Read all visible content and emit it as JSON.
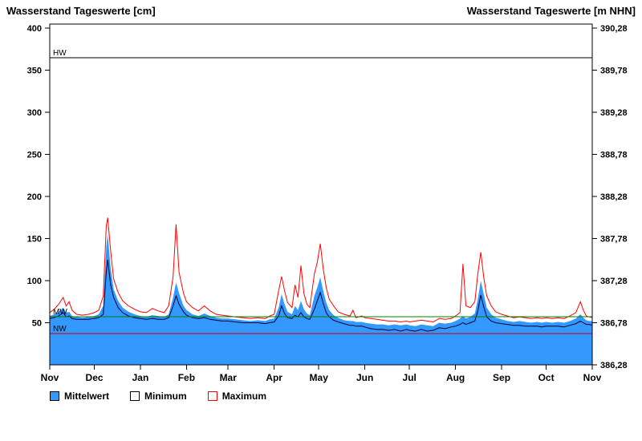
{
  "chart": {
    "title_left": "Wasserstand Tageswerte [cm]",
    "title_right": "Wasserstand Tageswerte [m NHN]"
  },
  "legend": [
    {
      "label": "Mittelwert"
    },
    {
      "label": "Minimum"
    },
    {
      "label": "Maximum"
    }
  ],
  "colors": {
    "mean_fill": "#3399FF",
    "min_line": "#000033",
    "max_line": "#FF0000",
    "mw_line": "#008000",
    "nw_line": "#CC0000",
    "hw_line": "#000000"
  },
  "chart_data": {
    "type": "area",
    "title": "Wasserstand Tageswerte",
    "unit_left": "cm",
    "unit_right": "m NHN",
    "x_unit": "day of water year, Nov 1 = 0",
    "x_range": [
      0,
      365
    ],
    "ylim_cm": [
      0,
      405
    ],
    "grid": false,
    "legend_position": "bottom",
    "x_ticks": {
      "days": [
        0,
        30,
        61,
        92,
        120,
        151,
        181,
        212,
        242,
        273,
        304,
        334,
        365
      ],
      "labels": [
        "Nov",
        "Dec",
        "Jan",
        "Feb",
        "Mar",
        "Apr",
        "May",
        "Jun",
        "Jul",
        "Aug",
        "Sep",
        "Oct",
        "Nov"
      ]
    },
    "yticks_left_cm": [
      50,
      100,
      150,
      200,
      250,
      300,
      350,
      400
    ],
    "yticks_right": {
      "values_cm": [
        0,
        50,
        100,
        150,
        200,
        250,
        300,
        350,
        400
      ],
      "labels": [
        "386,28",
        "386,78",
        "387,28",
        "387,78",
        "388,28",
        "388,78",
        "389,28",
        "389,78",
        "390,28"
      ]
    },
    "reference_lines": [
      {
        "name": "HW",
        "value_cm": 365
      },
      {
        "name": "MW",
        "value_cm": 57
      },
      {
        "name": "NW",
        "value_cm": 37
      }
    ],
    "point_format": [
      "day",
      "minimum_cm",
      "mittelwert_cm",
      "maximum_cm"
    ],
    "points": [
      [
        0,
        55,
        58,
        62
      ],
      [
        3,
        56,
        60,
        66
      ],
      [
        6,
        58,
        63,
        72
      ],
      [
        9,
        62,
        68,
        80
      ],
      [
        11,
        57,
        62,
        70
      ],
      [
        13,
        58,
        63,
        75
      ],
      [
        15,
        55,
        58,
        65
      ],
      [
        18,
        54,
        57,
        60
      ],
      [
        22,
        54,
        56,
        59
      ],
      [
        26,
        54,
        57,
        60
      ],
      [
        30,
        55,
        58,
        62
      ],
      [
        33,
        56,
        60,
        65
      ],
      [
        36,
        60,
        70,
        82
      ],
      [
        38,
        110,
        140,
        165
      ],
      [
        39,
        125,
        155,
        175
      ],
      [
        41,
        95,
        115,
        135
      ],
      [
        43,
        80,
        90,
        102
      ],
      [
        46,
        68,
        76,
        86
      ],
      [
        49,
        62,
        68,
        76
      ],
      [
        53,
        58,
        63,
        70
      ],
      [
        57,
        56,
        60,
        66
      ],
      [
        61,
        55,
        58,
        63
      ],
      [
        65,
        54,
        57,
        62
      ],
      [
        69,
        55,
        59,
        67
      ],
      [
        73,
        54,
        58,
        64
      ],
      [
        77,
        54,
        57,
        62
      ],
      [
        80,
        56,
        60,
        70
      ],
      [
        83,
        70,
        80,
        105
      ],
      [
        85,
        82,
        98,
        167
      ],
      [
        87,
        72,
        85,
        110
      ],
      [
        90,
        63,
        70,
        85
      ],
      [
        92,
        59,
        65,
        75
      ],
      [
        96,
        56,
        60,
        68
      ],
      [
        100,
        55,
        58,
        64
      ],
      [
        104,
        56,
        61,
        70
      ],
      [
        108,
        54,
        58,
        64
      ],
      [
        112,
        53,
        56,
        60
      ],
      [
        116,
        52,
        55,
        59
      ],
      [
        120,
        52,
        55,
        58
      ],
      [
        125,
        51,
        54,
        57
      ],
      [
        130,
        50,
        53,
        56
      ],
      [
        135,
        50,
        52,
        55
      ],
      [
        140,
        50,
        53,
        56
      ],
      [
        145,
        49,
        52,
        55
      ],
      [
        148,
        50,
        54,
        58
      ],
      [
        151,
        51,
        55,
        60
      ],
      [
        154,
        58,
        68,
        88
      ],
      [
        156,
        70,
        84,
        105
      ],
      [
        158,
        61,
        72,
        88
      ],
      [
        160,
        56,
        63,
        74
      ],
      [
        163,
        55,
        60,
        68
      ],
      [
        165,
        59,
        70,
        95
      ],
      [
        167,
        57,
        65,
        80
      ],
      [
        169,
        62,
        76,
        118
      ],
      [
        171,
        57,
        66,
        85
      ],
      [
        173,
        55,
        61,
        72
      ],
      [
        175,
        54,
        59,
        68
      ],
      [
        178,
        66,
        82,
        108
      ],
      [
        180,
        76,
        92,
        122
      ],
      [
        182,
        86,
        104,
        144
      ],
      [
        184,
        73,
        88,
        114
      ],
      [
        186,
        62,
        74,
        92
      ],
      [
        188,
        57,
        65,
        78
      ],
      [
        191,
        53,
        59,
        70
      ],
      [
        194,
        51,
        56,
        63
      ],
      [
        198,
        49,
        53,
        60
      ],
      [
        202,
        47,
        52,
        58
      ],
      [
        204,
        47,
        52,
        65
      ],
      [
        206,
        46,
        51,
        56
      ],
      [
        210,
        46,
        51,
        58
      ],
      [
        212,
        45,
        50,
        56
      ],
      [
        216,
        43,
        49,
        55
      ],
      [
        220,
        42,
        48,
        54
      ],
      [
        224,
        42,
        48,
        53
      ],
      [
        228,
        41,
        47,
        52
      ],
      [
        232,
        42,
        48,
        52
      ],
      [
        236,
        40,
        47,
        51
      ],
      [
        240,
        42,
        48,
        52
      ],
      [
        242,
        41,
        47,
        51
      ],
      [
        246,
        40,
        46,
        52
      ],
      [
        250,
        42,
        48,
        53
      ],
      [
        254,
        40,
        47,
        52
      ],
      [
        258,
        41,
        46,
        51
      ],
      [
        262,
        44,
        50,
        55
      ],
      [
        266,
        43,
        49,
        54
      ],
      [
        270,
        45,
        50,
        55
      ],
      [
        273,
        46,
        52,
        58
      ],
      [
        276,
        48,
        55,
        62
      ],
      [
        278,
        50,
        58,
        120
      ],
      [
        280,
        48,
        55,
        70
      ],
      [
        283,
        50,
        57,
        68
      ],
      [
        286,
        52,
        61,
        75
      ],
      [
        288,
        64,
        78,
        108
      ],
      [
        290,
        83,
        100,
        134
      ],
      [
        292,
        69,
        84,
        104
      ],
      [
        294,
        57,
        68,
        82
      ],
      [
        297,
        52,
        60,
        70
      ],
      [
        300,
        50,
        56,
        63
      ],
      [
        304,
        49,
        54,
        60
      ],
      [
        308,
        48,
        52,
        58
      ],
      [
        312,
        47,
        51,
        56
      ],
      [
        316,
        47,
        52,
        57
      ],
      [
        320,
        46,
        51,
        56
      ],
      [
        324,
        46,
        50,
        55
      ],
      [
        328,
        46,
        51,
        56
      ],
      [
        331,
        45,
        50,
        55
      ],
      [
        334,
        46,
        51,
        56
      ],
      [
        338,
        46,
        50,
        55
      ],
      [
        342,
        46,
        51,
        56
      ],
      [
        346,
        45,
        50,
        55
      ],
      [
        350,
        47,
        52,
        58
      ],
      [
        354,
        49,
        55,
        62
      ],
      [
        357,
        52,
        60,
        75
      ],
      [
        359,
        50,
        56,
        65
      ],
      [
        361,
        48,
        53,
        58
      ],
      [
        363,
        48,
        52,
        57
      ],
      [
        365,
        47,
        52,
        56
      ]
    ]
  }
}
